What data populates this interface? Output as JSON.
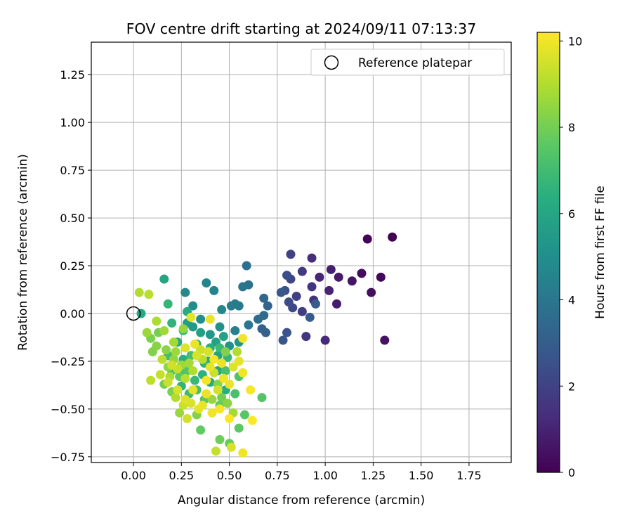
{
  "chart_data": {
    "type": "scatter",
    "title": "FOV centre drift starting at 2024/09/11 07:13:37",
    "xlabel": "Angular distance from reference (arcmin)",
    "ylabel": "Rotation from reference (arcmin)",
    "xlim": [
      -0.22,
      1.97
    ],
    "ylim": [
      -0.78,
      1.42
    ],
    "xticks": [
      0.0,
      0.25,
      0.5,
      0.75,
      1.0,
      1.25,
      1.5,
      1.75
    ],
    "xtick_labels": [
      "0.00",
      "0.25",
      "0.50",
      "0.75",
      "1.00",
      "1.25",
      "1.50",
      "1.75"
    ],
    "yticks": [
      -0.75,
      -0.5,
      -0.25,
      0.0,
      0.25,
      0.5,
      0.75,
      1.0,
      1.25
    ],
    "ytick_labels": [
      "−0.75",
      "−0.50",
      "−0.25",
      "0.00",
      "0.25",
      "0.50",
      "0.75",
      "1.00",
      "1.25"
    ],
    "grid": true,
    "legend": {
      "position": "top-right",
      "entries": [
        "Reference platepar"
      ]
    },
    "reference_point": {
      "x": 0.0,
      "y": 0.0
    },
    "colorbar": {
      "label": "Hours from first FF file",
      "range": [
        0,
        10.2
      ],
      "ticks": [
        0,
        2,
        4,
        6,
        8,
        10
      ],
      "tick_labels": [
        "0",
        "2",
        "4",
        "6",
        "8",
        "10"
      ],
      "colormap": "viridis"
    },
    "points": [
      [
        1.35,
        0.4,
        0.0
      ],
      [
        1.22,
        0.39,
        0.1
      ],
      [
        1.29,
        0.19,
        0.2
      ],
      [
        1.19,
        0.21,
        0.3
      ],
      [
        1.24,
        0.11,
        0.4
      ],
      [
        1.31,
        -0.14,
        0.5
      ],
      [
        1.14,
        0.17,
        0.6
      ],
      [
        1.07,
        0.19,
        0.7
      ],
      [
        1.06,
        0.05,
        0.8
      ],
      [
        1.03,
        0.23,
        0.9
      ],
      [
        1.02,
        0.12,
        1.0
      ],
      [
        0.97,
        0.19,
        1.1
      ],
      [
        1.0,
        -0.14,
        1.2
      ],
      [
        0.93,
        0.29,
        1.3
      ],
      [
        0.94,
        0.07,
        1.4
      ],
      [
        0.93,
        0.14,
        1.5
      ],
      [
        0.9,
        -0.12,
        1.6
      ],
      [
        0.88,
        0.22,
        1.7
      ],
      [
        0.88,
        0.01,
        1.8
      ],
      [
        0.85,
        0.09,
        1.9
      ],
      [
        0.82,
        0.31,
        2.0
      ],
      [
        0.82,
        0.18,
        2.1
      ],
      [
        0.83,
        0.03,
        2.2
      ],
      [
        0.81,
        0.06,
        2.3
      ],
      [
        0.8,
        0.2,
        2.4
      ],
      [
        0.79,
        0.12,
        2.5
      ],
      [
        0.8,
        -0.1,
        2.6
      ],
      [
        0.78,
        -0.14,
        2.7
      ],
      [
        0.77,
        0.11,
        2.8
      ],
      [
        0.92,
        -0.02,
        2.9
      ],
      [
        0.95,
        0.05,
        3.0
      ],
      [
        0.69,
        -0.1,
        3.1
      ],
      [
        0.67,
        -0.08,
        3.2
      ],
      [
        0.7,
        0.04,
        3.3
      ],
      [
        0.68,
        0.08,
        3.4
      ],
      [
        0.68,
        -0.01,
        3.5
      ],
      [
        0.65,
        -0.03,
        3.6
      ],
      [
        0.59,
        0.25,
        3.7
      ],
      [
        0.6,
        0.15,
        3.8
      ],
      [
        0.57,
        0.14,
        3.9
      ],
      [
        0.6,
        -0.06,
        4.0
      ],
      [
        0.55,
        0.04,
        4.1
      ],
      [
        0.53,
        0.05,
        4.2
      ],
      [
        0.51,
        0.04,
        4.3
      ],
      [
        0.53,
        -0.09,
        4.4
      ],
      [
        0.42,
        0.12,
        4.5
      ],
      [
        0.38,
        0.16,
        4.6
      ],
      [
        0.46,
        0.02,
        4.7
      ],
      [
        0.27,
        0.11,
        4.8
      ],
      [
        0.31,
        0.04,
        4.9
      ],
      [
        0.35,
        -0.03,
        5.0
      ],
      [
        0.45,
        -0.07,
        5.1
      ],
      [
        0.5,
        -0.17,
        5.2
      ],
      [
        0.55,
        -0.15,
        5.3
      ],
      [
        0.4,
        -0.11,
        5.4
      ],
      [
        0.31,
        -0.07,
        5.5
      ],
      [
        0.28,
        -0.05,
        5.6
      ],
      [
        0.35,
        -0.1,
        5.7
      ],
      [
        0.47,
        -0.12,
        5.8
      ],
      [
        0.44,
        -0.22,
        5.9
      ],
      [
        0.16,
        0.18,
        6.0
      ],
      [
        0.04,
        0.0,
        6.1
      ],
      [
        0.28,
        0.01,
        6.2
      ],
      [
        0.33,
        -0.16,
        6.3
      ],
      [
        0.4,
        -0.18,
        6.4
      ],
      [
        0.37,
        -0.26,
        6.5
      ],
      [
        0.2,
        -0.05,
        6.6
      ],
      [
        0.18,
        0.05,
        6.7
      ],
      [
        0.26,
        -0.09,
        6.8
      ],
      [
        0.45,
        -0.18,
        6.9
      ],
      [
        0.25,
        -0.3,
        7.0
      ],
      [
        0.3,
        -0.22,
        7.1
      ],
      [
        0.48,
        -0.3,
        7.2
      ],
      [
        0.55,
        -0.33,
        7.3
      ],
      [
        0.67,
        -0.44,
        7.4
      ],
      [
        0.58,
        -0.53,
        7.5
      ],
      [
        0.55,
        -0.6,
        7.6
      ],
      [
        0.35,
        -0.61,
        7.7
      ],
      [
        0.5,
        -0.68,
        7.8
      ],
      [
        0.45,
        -0.66,
        7.9
      ],
      [
        0.13,
        -0.1,
        8.0
      ],
      [
        0.09,
        -0.13,
        8.1
      ],
      [
        0.1,
        -0.2,
        8.2
      ],
      [
        0.12,
        -0.17,
        8.3
      ],
      [
        0.17,
        -0.19,
        8.4
      ],
      [
        0.26,
        -0.08,
        8.5
      ],
      [
        0.07,
        -0.1,
        8.6
      ],
      [
        0.16,
        -0.09,
        8.7
      ],
      [
        0.21,
        -0.15,
        8.8
      ],
      [
        0.12,
        -0.04,
        8.9
      ],
      [
        0.03,
        0.11,
        9.0
      ],
      [
        0.08,
        0.1,
        9.1
      ],
      [
        0.09,
        -0.35,
        9.2
      ],
      [
        0.14,
        -0.32,
        9.3
      ],
      [
        0.18,
        -0.36,
        9.4
      ],
      [
        0.2,
        -0.27,
        9.5
      ],
      [
        0.23,
        -0.4,
        9.6
      ],
      [
        0.27,
        -0.45,
        9.7
      ],
      [
        0.31,
        -0.4,
        9.8
      ],
      [
        0.36,
        -0.48,
        9.9
      ],
      [
        0.41,
        -0.52,
        10.0
      ],
      [
        0.45,
        -0.5,
        10.1
      ],
      [
        0.5,
        -0.55,
        10.2
      ],
      [
        0.57,
        -0.73,
        10.0
      ],
      [
        0.51,
        -0.7,
        9.6
      ],
      [
        0.43,
        -0.72,
        9.3
      ],
      [
        0.62,
        -0.56,
        10.2
      ],
      [
        0.61,
        -0.4,
        10.1
      ],
      [
        0.57,
        -0.31,
        10.0
      ],
      [
        0.55,
        -0.25,
        9.8
      ],
      [
        0.52,
        -0.28,
        9.7
      ],
      [
        0.5,
        -0.37,
        9.9
      ],
      [
        0.47,
        -0.34,
        10.0
      ],
      [
        0.44,
        -0.4,
        9.5
      ],
      [
        0.42,
        -0.31,
        9.4
      ],
      [
        0.4,
        -0.28,
        9.8
      ],
      [
        0.38,
        -0.35,
        10.1
      ],
      [
        0.36,
        -0.24,
        9.2
      ],
      [
        0.33,
        -0.22,
        9.6
      ],
      [
        0.31,
        -0.3,
        9.0
      ],
      [
        0.29,
        -0.26,
        8.8
      ],
      [
        0.27,
        -0.34,
        9.1
      ],
      [
        0.25,
        -0.27,
        8.7
      ],
      [
        0.23,
        -0.29,
        9.3
      ],
      [
        0.21,
        -0.24,
        8.5
      ],
      [
        0.19,
        -0.33,
        8.9
      ],
      [
        0.22,
        -0.44,
        9.0
      ],
      [
        0.26,
        -0.48,
        9.4
      ],
      [
        0.3,
        -0.47,
        9.6
      ],
      [
        0.34,
        -0.5,
        9.8
      ],
      [
        0.38,
        -0.42,
        9.9
      ],
      [
        0.41,
        -0.45,
        8.6
      ],
      [
        0.44,
        -0.37,
        8.3
      ],
      [
        0.46,
        -0.44,
        8.0
      ],
      [
        0.49,
        -0.47,
        8.4
      ],
      [
        0.52,
        -0.52,
        8.8
      ],
      [
        0.33,
        -0.53,
        8.2
      ],
      [
        0.28,
        -0.55,
        9.5
      ],
      [
        0.24,
        -0.52,
        8.6
      ],
      [
        0.2,
        -0.41,
        8.1
      ],
      [
        0.16,
        -0.37,
        8.0
      ],
      [
        0.18,
        -0.28,
        8.4
      ],
      [
        0.15,
        -0.24,
        9.2
      ],
      [
        0.22,
        -0.2,
        8.7
      ],
      [
        0.27,
        -0.18,
        9.7
      ],
      [
        0.32,
        -0.16,
        9.9
      ],
      [
        0.35,
        -0.19,
        9.4
      ],
      [
        0.39,
        -0.2,
        9.6
      ],
      [
        0.42,
        -0.24,
        10.1
      ],
      [
        0.46,
        -0.26,
        9.9
      ],
      [
        0.48,
        -0.2,
        8.2
      ],
      [
        0.3,
        -0.02,
        9.8
      ],
      [
        0.4,
        -0.03,
        9.9
      ],
      [
        0.57,
        -0.13,
        10.0
      ],
      [
        0.54,
        -0.2,
        9.0
      ],
      [
        0.32,
        -0.35,
        6.8
      ],
      [
        0.36,
        -0.32,
        6.5
      ],
      [
        0.4,
        -0.36,
        6.2
      ],
      [
        0.44,
        -0.3,
        6.0
      ],
      [
        0.48,
        -0.4,
        6.3
      ],
      [
        0.25,
        -0.38,
        6.6
      ],
      [
        0.29,
        -0.42,
        6.9
      ],
      [
        0.33,
        -0.4,
        7.1
      ],
      [
        0.28,
        -0.3,
        7.4
      ],
      [
        0.24,
        -0.33,
        7.6
      ],
      [
        0.2,
        -0.3,
        7.3
      ],
      [
        0.26,
        -0.24,
        6.4
      ],
      [
        0.39,
        -0.25,
        6.1
      ],
      [
        0.43,
        -0.15,
        5.8
      ],
      [
        0.49,
        -0.23,
        6.7
      ],
      [
        0.18,
        -0.22,
        7.0
      ],
      [
        0.37,
        -0.45,
        7.5
      ],
      [
        0.45,
        -0.48,
        7.7
      ],
      [
        0.53,
        -0.42,
        7.2
      ],
      [
        0.23,
        -0.15,
        6.2
      ]
    ]
  }
}
